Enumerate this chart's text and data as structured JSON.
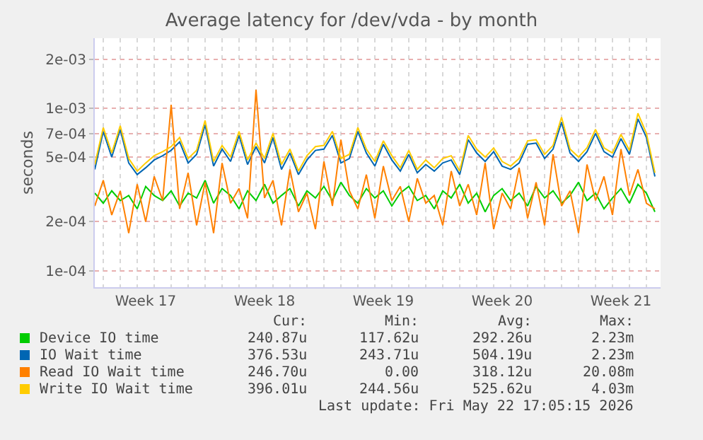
{
  "chart_data": {
    "type": "line",
    "title": "Average latency for /dev/vda - by month",
    "ylabel": "seconds",
    "log": "y",
    "grid": true,
    "legend": "bottom left",
    "x": [
      "2026-04-20T12:00",
      "2026-04-21T00:00",
      "2026-04-21T12:00",
      "2026-04-22T00:00",
      "2026-04-22T12:00",
      "2026-04-23T00:00",
      "2026-04-23T12:00",
      "2026-04-24T00:00",
      "2026-04-24T12:00",
      "2026-04-25T00:00",
      "2026-04-25T12:00",
      "2026-04-26T00:00",
      "2026-04-26T12:00",
      "2026-04-27T00:00",
      "2026-04-27T12:00",
      "2026-04-28T00:00",
      "2026-04-28T12:00",
      "2026-04-29T00:00",
      "2026-04-29T12:00",
      "2026-04-30T00:00",
      "2026-04-30T12:00",
      "2026-05-01T00:00",
      "2026-05-01T12:00",
      "2026-05-02T00:00",
      "2026-05-02T12:00",
      "2026-05-03T00:00",
      "2026-05-03T12:00",
      "2026-05-04T00:00",
      "2026-05-04T12:00",
      "2026-05-05T00:00",
      "2026-05-05T12:00",
      "2026-05-06T00:00",
      "2026-05-06T12:00",
      "2026-05-07T00:00",
      "2026-05-07T12:00",
      "2026-05-08T00:00",
      "2026-05-08T12:00",
      "2026-05-09T00:00",
      "2026-05-09T12:00",
      "2026-05-10T00:00",
      "2026-05-10T12:00",
      "2026-05-11T00:00",
      "2026-05-11T12:00",
      "2026-05-12T00:00",
      "2026-05-12T12:00",
      "2026-05-13T00:00",
      "2026-05-13T12:00",
      "2026-05-14T00:00",
      "2026-05-14T12:00",
      "2026-05-15T00:00",
      "2026-05-15T12:00",
      "2026-05-16T00:00",
      "2026-05-16T12:00",
      "2026-05-17T00:00",
      "2026-05-17T12:00",
      "2026-05-18T00:00",
      "2026-05-18T12:00",
      "2026-05-19T00:00",
      "2026-05-19T12:00",
      "2026-05-20T00:00",
      "2026-05-20T12:00",
      "2026-05-21T00:00",
      "2026-05-21T12:00",
      "2026-05-22T00:00",
      "2026-05-22T12:00",
      "2026-05-23T00:00",
      "2026-05-23T12:00"
    ],
    "series": [
      {
        "name": "Device IO time",
        "color": "#00cc00",
        "values": [
          0.0003,
          0.00026,
          0.00031,
          0.00027,
          0.00029,
          0.00024,
          0.00033,
          0.00029,
          0.00027,
          0.00031,
          0.00025,
          0.0003,
          0.00028,
          0.00036,
          0.00026,
          0.00032,
          0.00029,
          0.00024,
          0.00031,
          0.00027,
          0.00034,
          0.00026,
          0.00029,
          0.00032,
          0.00025,
          0.00031,
          0.00028,
          0.00033,
          0.00027,
          0.00035,
          0.00029,
          0.00026,
          0.00032,
          0.00028,
          0.00031,
          0.00025,
          0.0003,
          0.00033,
          0.00027,
          0.00029,
          0.00024,
          0.00031,
          0.00028,
          0.00034,
          0.00026,
          0.0003,
          0.00023,
          0.00029,
          0.00032,
          0.00027,
          0.0003,
          0.00025,
          0.00033,
          0.00028,
          0.00031,
          0.00026,
          0.00029,
          0.00035,
          0.00027,
          0.0003,
          0.00024,
          0.00028,
          0.00032,
          0.00026,
          0.00034,
          0.0003,
          0.00023
        ]
      },
      {
        "name": "IO Wait time",
        "color": "#0066b3",
        "values": [
          0.00042,
          0.00072,
          0.0005,
          0.00074,
          0.00046,
          0.00039,
          0.00043,
          0.00048,
          0.00051,
          0.00055,
          0.00062,
          0.00046,
          0.00052,
          0.00079,
          0.00044,
          0.00056,
          0.00047,
          0.00068,
          0.00045,
          0.00058,
          0.00046,
          0.00066,
          0.00042,
          0.00053,
          0.00039,
          0.00048,
          0.00055,
          0.00056,
          0.00068,
          0.00046,
          0.00049,
          0.00072,
          0.00053,
          0.00044,
          0.0006,
          0.00048,
          0.00041,
          0.00052,
          0.0004,
          0.00045,
          0.00041,
          0.00046,
          0.00048,
          0.00039,
          0.00064,
          0.00053,
          0.00047,
          0.00054,
          0.00044,
          0.00042,
          0.00046,
          0.0006,
          0.00061,
          0.00049,
          0.00056,
          0.00082,
          0.00053,
          0.00047,
          0.00054,
          0.0007,
          0.00054,
          0.0005,
          0.00065,
          0.00052,
          0.00086,
          0.00066,
          0.00038
        ]
      },
      {
        "name": "Read IO Wait time",
        "color": "#ff8000",
        "values": [
          0.00025,
          0.00036,
          0.00022,
          0.00031,
          0.00017,
          0.00034,
          0.0002,
          0.00038,
          0.00027,
          0.00105,
          0.00024,
          0.0004,
          0.00019,
          0.00035,
          0.00017,
          0.00046,
          0.00026,
          0.00032,
          0.00021,
          0.0013,
          0.00028,
          0.00036,
          0.00019,
          0.00042,
          0.00023,
          0.0003,
          0.00018,
          0.00047,
          0.00025,
          0.00064,
          0.00031,
          0.00024,
          0.00039,
          0.00021,
          0.00044,
          0.00027,
          0.00033,
          0.0002,
          0.00037,
          0.00026,
          0.00029,
          0.00019,
          0.00041,
          0.00025,
          0.00034,
          0.00022,
          0.00046,
          0.00018,
          0.0003,
          0.00024,
          0.00043,
          0.00021,
          0.00035,
          0.00019,
          0.00052,
          0.00025,
          0.00031,
          0.00017,
          0.00045,
          0.00027,
          0.00038,
          0.00022,
          0.00056,
          0.00029,
          0.00042,
          0.00026,
          0.00024
        ]
      },
      {
        "name": "Write IO Wait time",
        "color": "#ffcc00",
        "values": [
          0.00045,
          0.00076,
          0.00053,
          0.00078,
          0.00049,
          0.00041,
          0.00046,
          0.00051,
          0.00054,
          0.00058,
          0.00066,
          0.00049,
          0.00055,
          0.00084,
          0.00047,
          0.00059,
          0.0005,
          0.00072,
          0.00048,
          0.00061,
          0.00049,
          0.0007,
          0.00045,
          0.00056,
          0.00041,
          0.00051,
          0.00058,
          0.00059,
          0.00072,
          0.00049,
          0.00052,
          0.00076,
          0.00056,
          0.00047,
          0.00063,
          0.00051,
          0.00043,
          0.00055,
          0.00042,
          0.00048,
          0.00043,
          0.00049,
          0.00051,
          0.00041,
          0.00068,
          0.00056,
          0.0005,
          0.00057,
          0.00047,
          0.00044,
          0.00049,
          0.00063,
          0.00064,
          0.00052,
          0.00059,
          0.00088,
          0.00056,
          0.0005,
          0.00057,
          0.00074,
          0.00057,
          0.00053,
          0.00069,
          0.00055,
          0.00093,
          0.0007,
          0.0004
        ]
      }
    ],
    "xlim": [
      "2026-04-20T12:00",
      "2026-05-23T20:00"
    ],
    "xticks": [
      {
        "value": "2026-04-23T12:00",
        "label": "Week 17"
      },
      {
        "value": "2026-04-30T12:00",
        "label": "Week 18"
      },
      {
        "value": "2026-05-07T12:00",
        "label": "Week 19"
      },
      {
        "value": "2026-05-14T12:00",
        "label": "Week 20"
      },
      {
        "value": "2026-05-21T12:00",
        "label": "Week 21"
      }
    ],
    "ylim": [
      7.9e-05,
      0.0027
    ],
    "yticks": [
      {
        "value": 0.0001,
        "label": "1e-04"
      },
      {
        "value": 0.0002,
        "label": "2e-04"
      },
      {
        "value": 0.0005,
        "label": "5e-04"
      },
      {
        "value": 0.0007,
        "label": "7e-04"
      },
      {
        "value": 0.001,
        "label": "1e-03"
      },
      {
        "value": 0.002,
        "label": "2e-03"
      }
    ],
    "annotations": [
      "Cur:",
      "Min:",
      "Avg:",
      "Max:",
      "240.87u",
      "117.62u",
      "292.26u",
      "2.23m",
      "376.53u",
      "243.71u",
      "504.19u",
      "2.23m",
      "246.70u",
      "0.00",
      "318.12u",
      "20.08m",
      "396.01u",
      "244.56u",
      "525.62u",
      "4.03m",
      "Last update: Fri May 22 17:05:15 2026"
    ]
  }
}
